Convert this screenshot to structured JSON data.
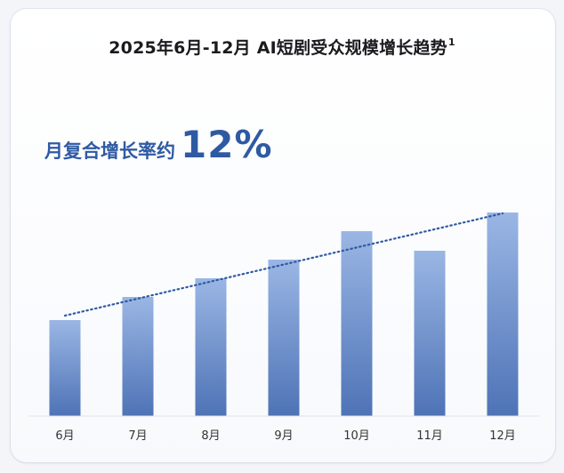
{
  "title": {
    "text": "2025年6月-12月 AI短剧受众规模增长趋势",
    "footnote": "1"
  },
  "headline": {
    "label": "月复合增长率约",
    "value": "12%"
  },
  "colors": {
    "bar_top": "#9ab6e4",
    "bar_bottom": "#4e73b6",
    "trendline": "#2f5aa3",
    "headline": "#2f5aa3"
  },
  "chart_data": {
    "type": "bar",
    "categories": [
      "6月",
      "7月",
      "8月",
      "9月",
      "10月",
      "11月",
      "12月"
    ],
    "values": [
      108,
      134,
      155,
      176,
      208,
      186,
      229
    ],
    "trendline": {
      "style": "dotted",
      "from": 107,
      "to": 228
    },
    "ylim": [
      0,
      250
    ],
    "grid": false,
    "legend": "none",
    "title": "2025年6月-12月 AI短剧受众规模增长趋势",
    "xlabel": "",
    "ylabel": ""
  }
}
